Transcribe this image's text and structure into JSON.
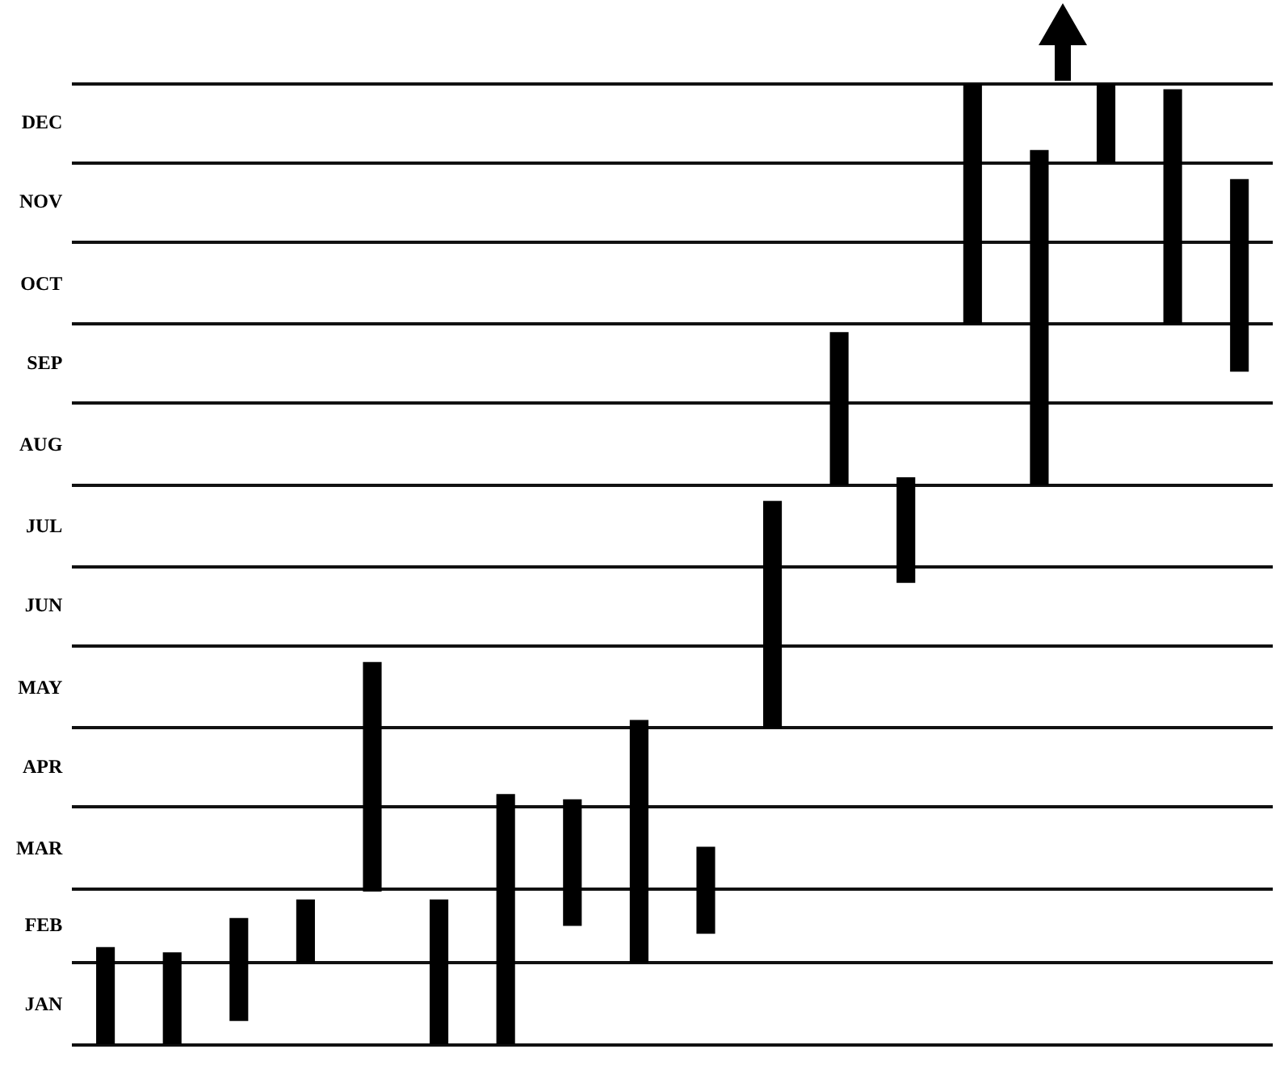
{
  "chart_data": {
    "type": "bar",
    "categories": [
      null,
      null,
      null,
      null,
      null,
      null,
      null,
      null,
      null,
      null,
      null,
      null,
      null,
      null,
      null,
      null,
      null,
      null
    ],
    "base": [
      11323,
      11323,
      11332,
      11354,
      11381,
      11323,
      11323,
      11368,
      11354,
      11365,
      11443,
      11535,
      11498,
      11596,
      11535,
      11657,
      11596,
      11578
    ],
    "values": [
      37,
      35,
      39,
      24,
      87,
      55,
      95,
      48,
      92,
      33,
      86,
      58,
      40,
      91,
      127,
      30,
      89,
      73
    ],
    "color": "#000000",
    "ylim": [
      "--01-01",
      "--12-31"
    ],
    "yticks": [
      {
        "value": "--01-01",
        "label": null
      },
      {
        "value": "--01-16",
        "label": "JAN"
      },
      {
        "value": "--02-01",
        "label": null
      },
      {
        "value": "--02-15",
        "label": "FEB"
      },
      {
        "value": "--03-01",
        "label": null
      },
      {
        "value": "--03-16",
        "label": "MAR"
      },
      {
        "value": "--04-01",
        "label": null
      },
      {
        "value": "--04-16",
        "label": "APR"
      },
      {
        "value": "--05-01",
        "label": null
      },
      {
        "value": "--05-16",
        "label": "MAY"
      },
      {
        "value": "--06-01",
        "label": null
      },
      {
        "value": "--06-16",
        "label": "JUN"
      },
      {
        "value": "--07-01",
        "label": null
      },
      {
        "value": "--07-16",
        "label": "JUL"
      },
      {
        "value": "--08-01",
        "label": null
      },
      {
        "value": "--08-16",
        "label": "AUG"
      },
      {
        "value": "--09-01",
        "label": null
      },
      {
        "value": "--09-16",
        "label": "SEP"
      },
      {
        "value": "--10-01",
        "label": null
      },
      {
        "value": "--10-16",
        "label": "OCT"
      },
      {
        "value": "--11-01",
        "label": null
      },
      {
        "value": "--11-16",
        "label": "NOV"
      },
      {
        "value": "--12-01",
        "label": null
      },
      {
        "value": "--12-16",
        "label": "DEC"
      },
      {
        "value": "--12-31",
        "label": null
      }
    ],
    "grid": "y",
    "tick_labels": "y",
    "legend": false
  }
}
